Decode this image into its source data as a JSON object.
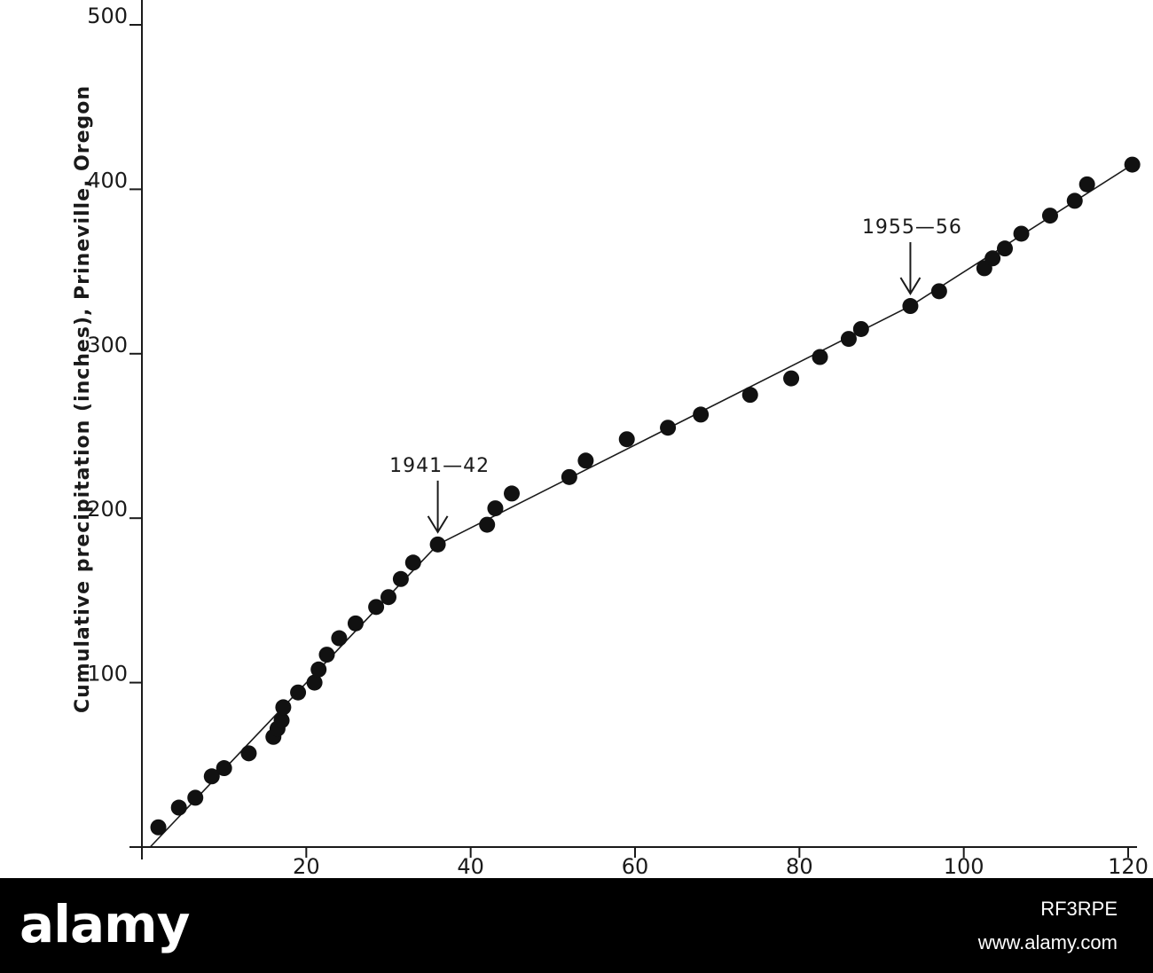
{
  "chart_data": {
    "type": "scatter",
    "ylabel": "Cumulative precipitation (inches), Prineville, Oregon",
    "xlabel": "",
    "xlim": [
      0,
      120
    ],
    "ylim": [
      0,
      500
    ],
    "x_ticks": [
      20,
      40,
      60,
      80,
      100,
      120
    ],
    "y_ticks": [
      100,
      200,
      300,
      400,
      500
    ],
    "grid": false,
    "points": [
      {
        "x": 2,
        "y": 12
      },
      {
        "x": 4.5,
        "y": 24
      },
      {
        "x": 6.5,
        "y": 30
      },
      {
        "x": 8.5,
        "y": 43
      },
      {
        "x": 10,
        "y": 48
      },
      {
        "x": 13,
        "y": 57
      },
      {
        "x": 16,
        "y": 67
      },
      {
        "x": 16.5,
        "y": 72
      },
      {
        "x": 17,
        "y": 77
      },
      {
        "x": 17.2,
        "y": 85
      },
      {
        "x": 19,
        "y": 94
      },
      {
        "x": 21,
        "y": 100
      },
      {
        "x": 21.5,
        "y": 108
      },
      {
        "x": 22.5,
        "y": 117
      },
      {
        "x": 24,
        "y": 127
      },
      {
        "x": 26,
        "y": 136
      },
      {
        "x": 28.5,
        "y": 146
      },
      {
        "x": 30,
        "y": 152
      },
      {
        "x": 31.5,
        "y": 163
      },
      {
        "x": 33,
        "y": 173
      },
      {
        "x": 36,
        "y": 184
      },
      {
        "x": 42,
        "y": 196
      },
      {
        "x": 43,
        "y": 206
      },
      {
        "x": 45,
        "y": 215
      },
      {
        "x": 52,
        "y": 225
      },
      {
        "x": 54,
        "y": 235
      },
      {
        "x": 59,
        "y": 248
      },
      {
        "x": 64,
        "y": 255
      },
      {
        "x": 68,
        "y": 263
      },
      {
        "x": 74,
        "y": 275
      },
      {
        "x": 79,
        "y": 285
      },
      {
        "x": 82.5,
        "y": 298
      },
      {
        "x": 86,
        "y": 309
      },
      {
        "x": 87.5,
        "y": 315
      },
      {
        "x": 93.5,
        "y": 329
      },
      {
        "x": 97,
        "y": 338
      },
      {
        "x": 102.5,
        "y": 352
      },
      {
        "x": 103.5,
        "y": 358
      },
      {
        "x": 105,
        "y": 364
      },
      {
        "x": 107,
        "y": 373
      },
      {
        "x": 110.5,
        "y": 384
      },
      {
        "x": 113.5,
        "y": 393
      },
      {
        "x": 115,
        "y": 403
      },
      {
        "x": 120.5,
        "y": 415
      }
    ],
    "trend_line": [
      {
        "x": 1,
        "y": 0
      },
      {
        "x": 36,
        "y": 184
      },
      {
        "x": 93.5,
        "y": 329
      },
      {
        "x": 120.5,
        "y": 415
      }
    ],
    "annotations": [
      {
        "text": "1941—42",
        "x": 36,
        "y": 184
      },
      {
        "text": "1955—56",
        "x": 93.5,
        "y": 329
      }
    ]
  },
  "watermark": {
    "logo": "alamy",
    "code": "RF3RPE",
    "site": "www.alamy.com",
    "colors": {
      "bar": "#000000",
      "text": "#ffffff"
    }
  }
}
